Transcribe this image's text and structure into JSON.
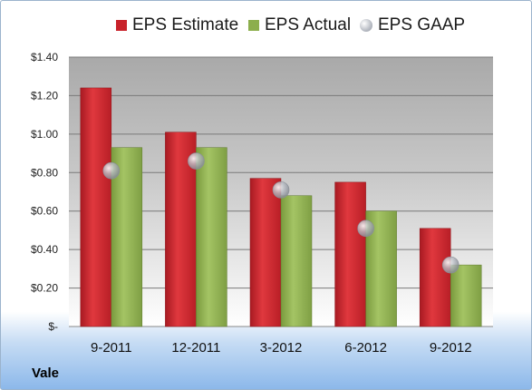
{
  "chart_data": {
    "type": "bar",
    "categories": [
      "9-2011",
      "12-2011",
      "3-2012",
      "6-2012",
      "9-2012"
    ],
    "series": [
      {
        "name": "EPS Estimate",
        "kind": "bar",
        "color": "#c8222a",
        "values": [
          1.24,
          1.01,
          0.77,
          0.75,
          0.51
        ]
      },
      {
        "name": "EPS Actual",
        "kind": "bar",
        "color": "#8cae4c",
        "values": [
          0.93,
          0.93,
          0.68,
          0.6,
          0.32
        ]
      },
      {
        "name": "EPS GAAP",
        "kind": "marker",
        "color": "#b8bcc4",
        "values": [
          0.81,
          0.86,
          0.71,
          0.51,
          0.32
        ]
      }
    ],
    "ylim": [
      0,
      1.4
    ],
    "yticks": [
      0,
      0.2,
      0.4,
      0.6,
      0.8,
      1.0,
      1.2,
      1.4
    ],
    "ytick_labels": [
      "$-",
      "$0.20",
      "$0.40",
      "$0.60",
      "$0.80",
      "$1.00",
      "$1.20",
      "$1.40"
    ],
    "grid": true,
    "legend_position": "top"
  },
  "company": "Vale"
}
